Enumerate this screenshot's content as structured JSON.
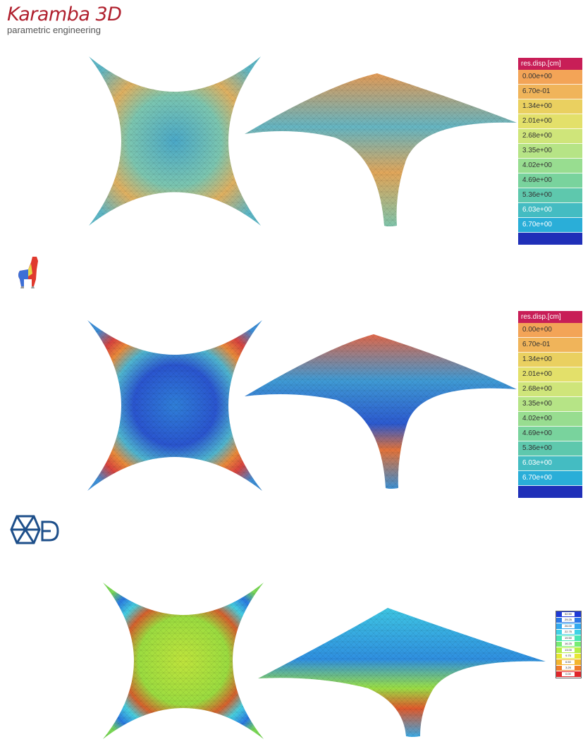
{
  "brand": {
    "title": "Karamba 3D",
    "subtitle": "parametric engineering"
  },
  "panels": [
    {
      "id": "karamba",
      "legend": {
        "header": "res.disp.[cm]",
        "header_color": "#c81e57",
        "values": [
          "0.00e+00",
          "6.70e-01",
          "1.34e+00",
          "2.01e+00",
          "2.68e+00",
          "3.35e+00",
          "4.02e+00",
          "4.69e+00",
          "5.36e+00",
          "6.03e+00",
          "6.70e+00"
        ],
        "colors": [
          "#f3a457",
          "#f0b45a",
          "#ead060",
          "#e3e06a",
          "#cfe57a",
          "#b6e486",
          "#98dd90",
          "#79d39d",
          "#5ec8ad",
          "#44bcc2",
          "#2aaed8"
        ],
        "foot_color": "#1f2fb8"
      }
    },
    {
      "id": "llama",
      "legend": {
        "header": "res.disp.[cm]",
        "header_color": "#c81e57",
        "values": [
          "0.00e+00",
          "6.70e-01",
          "1.34e+00",
          "2.01e+00",
          "2.68e+00",
          "3.35e+00",
          "4.02e+00",
          "4.69e+00",
          "5.36e+00",
          "6.03e+00",
          "6.70e+00"
        ],
        "colors": [
          "#f3a457",
          "#f0b45a",
          "#ead060",
          "#e3e06a",
          "#cfe57a",
          "#b6e486",
          "#98dd90",
          "#79d39d",
          "#5ec8ad",
          "#44bcc2",
          "#2aaed8"
        ],
        "foot_color": "#1f2fb8"
      }
    },
    {
      "id": "fem",
      "mini_legend": {
        "values": [
          "32.50",
          "29.25",
          "26.00",
          "22.75",
          "19.50",
          "16.25",
          "13.00",
          "9.75",
          "6.50",
          "3.25",
          "0.00"
        ],
        "colors": [
          "#1f3ad6",
          "#2a77e6",
          "#33a9ee",
          "#3fd2e6",
          "#4ae6b4",
          "#77ec74",
          "#b5ef45",
          "#e6e634",
          "#f3b52e",
          "#f07a2a",
          "#e0262a"
        ]
      }
    }
  ],
  "icons": {
    "llama": "llama-logo-icon",
    "fem": "hexagon-logo-icon"
  }
}
